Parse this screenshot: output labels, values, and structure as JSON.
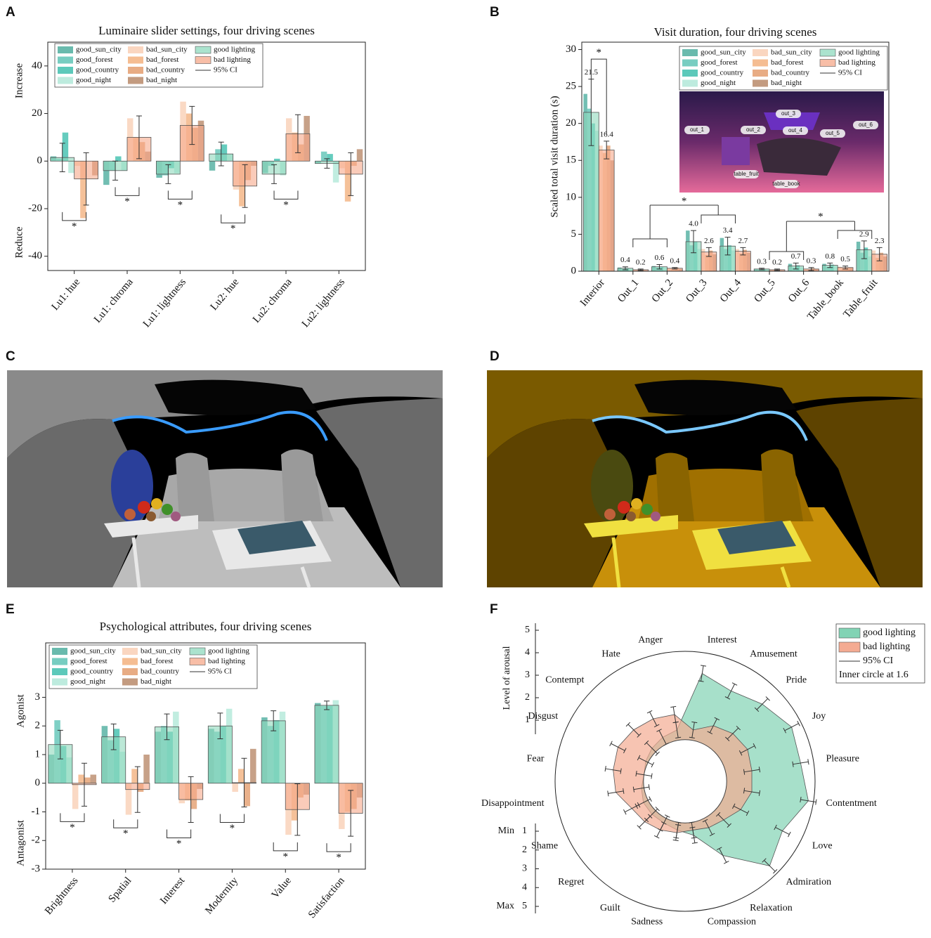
{
  "panel_labels": [
    "A",
    "B",
    "C",
    "D",
    "E",
    "F"
  ],
  "chart_data": [
    {
      "type": "bar",
      "title": "Luminaire slider settings, four driving scenes",
      "y_annotations": [
        "Increase",
        "Reduce"
      ],
      "categories": [
        "Lu1: hue",
        "Lu1: chroma",
        "Lu1: lightness",
        "Lu2: hue",
        "Lu2: chroma",
        "Lu2: lightness"
      ],
      "ylim": [
        -46,
        50
      ],
      "yticks": [
        -40,
        -20,
        0,
        20,
        40
      ],
      "series": [
        {
          "name": "good_sun_city",
          "color": "#4fae9f",
          "values": [
            2,
            -10,
            -7,
            -4,
            -5,
            -1
          ]
        },
        {
          "name": "good_forest",
          "color": "#5fc4b6",
          "values": [
            1,
            -4,
            -6,
            5,
            -2,
            4
          ]
        },
        {
          "name": "good_country",
          "color": "#3fbfae",
          "values": [
            12,
            2,
            -3,
            7,
            1,
            3
          ]
        },
        {
          "name": "good_night",
          "color": "#b2e8d8",
          "values": [
            -5,
            -4,
            -5,
            3,
            -6,
            -9
          ]
        },
        {
          "name": "bad_sun_city",
          "color": "#f9cfb5",
          "values": [
            -2,
            18,
            25,
            -12,
            18,
            -3
          ]
        },
        {
          "name": "bad_forest",
          "color": "#f3b27f",
          "values": [
            -24,
            10,
            20,
            -19,
            12,
            -17
          ]
        },
        {
          "name": "bad_country",
          "color": "#e49d6e",
          "values": [
            0,
            8,
            14,
            -8,
            7,
            -2
          ]
        },
        {
          "name": "bad_night",
          "color": "#b9896a",
          "values": [
            -6,
            4,
            17,
            -2,
            19,
            5
          ]
        },
        {
          "name": "good lighting",
          "color": "#8fd9bd",
          "values": [
            1.5,
            -4,
            -5.5,
            3,
            -5.5,
            -1
          ],
          "errors": [
            6,
            4,
            4,
            5,
            4,
            2
          ]
        },
        {
          "name": "bad lighting",
          "color": "#f6a88a",
          "values": [
            -7.5,
            10,
            15,
            -10.5,
            11.5,
            -5.5
          ],
          "errors": [
            11,
            9,
            8,
            9,
            8,
            9
          ]
        }
      ],
      "ci_label": "95% CI",
      "significance": [
        "*",
        "*",
        "*",
        "*",
        "*",
        null
      ]
    },
    {
      "type": "bar",
      "title": "Visit duration, four driving scenes",
      "ylabel": "Scaled total visit duration (s)",
      "categories": [
        "Interior",
        "Out_1",
        "Out_2",
        "Out_3",
        "Out_4",
        "Out_5",
        "Out_6",
        "Table_book",
        "Table_fruit"
      ],
      "ylim": [
        0,
        31
      ],
      "yticks": [
        0,
        5,
        10,
        15,
        20,
        25,
        30
      ],
      "series": [
        {
          "name": "good_sun_city",
          "color": "#4fae9f",
          "values": [
            24,
            0.5,
            0.7,
            5.5,
            4.5,
            0.3,
            1.0,
            1.0,
            4.0
          ]
        },
        {
          "name": "good_forest",
          "color": "#5fc4b6",
          "values": [
            22,
            0.3,
            0.5,
            3.5,
            3.0,
            0.2,
            0.5,
            0.6,
            2.5
          ]
        },
        {
          "name": "good_country",
          "color": "#3fbfae",
          "values": [
            20,
            0.4,
            0.6,
            4.0,
            3.5,
            0.3,
            0.8,
            0.9,
            3.2
          ]
        },
        {
          "name": "good_night",
          "color": "#b2e8d8",
          "values": [
            19,
            0.3,
            0.5,
            3.0,
            2.8,
            0.3,
            0.5,
            0.7,
            2.0
          ]
        },
        {
          "name": "bad_sun_city",
          "color": "#f9cfb5",
          "values": [
            17,
            0.2,
            0.4,
            3.0,
            3.0,
            0.2,
            0.3,
            0.6,
            2.8
          ]
        },
        {
          "name": "bad_forest",
          "color": "#f3b27f",
          "values": [
            16,
            0.2,
            0.3,
            2.2,
            2.4,
            0.2,
            0.2,
            0.4,
            1.8
          ]
        },
        {
          "name": "bad_country",
          "color": "#e49d6e",
          "values": [
            17,
            0.2,
            0.5,
            2.8,
            2.9,
            0.2,
            0.4,
            0.5,
            2.5
          ]
        },
        {
          "name": "bad_night",
          "color": "#b9896a",
          "values": [
            15,
            0.1,
            0.3,
            2.3,
            2.5,
            0.1,
            0.3,
            0.5,
            2.0
          ]
        },
        {
          "name": "good lighting",
          "color": "#8fd9bd",
          "values": [
            21.5,
            0.4,
            0.6,
            4.0,
            3.4,
            0.3,
            0.7,
            0.8,
            2.9
          ],
          "value_labels": [
            "21.5",
            "0.4",
            "0.6",
            "4.0",
            "3.4",
            "0.3",
            "0.7",
            "0.8",
            "2.9"
          ],
          "errors": [
            4.5,
            0.2,
            0.3,
            1.5,
            1.2,
            0.1,
            0.4,
            0.3,
            1.2
          ]
        },
        {
          "name": "bad lighting",
          "color": "#f6a88a",
          "values": [
            16.4,
            0.2,
            0.4,
            2.6,
            2.7,
            0.2,
            0.3,
            0.5,
            2.3
          ],
          "value_labels": [
            "16.4",
            "0.2",
            "0.4",
            "2.6",
            "2.7",
            "0.2",
            "0.3",
            "0.5",
            "2.3"
          ],
          "errors": [
            1.2,
            0.1,
            0.1,
            0.6,
            0.5,
            0.1,
            0.2,
            0.2,
            0.9
          ]
        }
      ],
      "ci_label": "95% CI",
      "significance": [
        "*",
        "*",
        "*"
      ],
      "inset_labels": [
        "out_3",
        "out_1",
        "out_2",
        "out_4",
        "out_5",
        "out_6",
        "table_fruit",
        "table_book"
      ]
    },
    {
      "type": "bar",
      "title": "Psychological attributes, four driving scenes",
      "y_annotations": [
        "Agonist",
        "Antagonist"
      ],
      "categories": [
        "Brightness",
        "Spatial",
        "Interest",
        "Modernity",
        "Value",
        "Satisfaction"
      ],
      "ylim": [
        -3,
        4.9
      ],
      "yticks": [
        -3,
        -2,
        -1,
        0,
        1,
        2,
        3
      ],
      "series": [
        {
          "name": "good_sun_city",
          "color": "#4fae9f",
          "values": [
            1.0,
            2.0,
            1.8,
            1.9,
            2.3,
            2.8
          ]
        },
        {
          "name": "good_forest",
          "color": "#5fc4b6",
          "values": [
            2.2,
            1.5,
            2.0,
            1.8,
            2.0,
            2.7
          ]
        },
        {
          "name": "good_country",
          "color": "#3fbfae",
          "values": [
            1.3,
            1.9,
            1.8,
            2.0,
            2.2,
            2.7
          ]
        },
        {
          "name": "good_night",
          "color": "#b2e8d8",
          "values": [
            0.9,
            1.1,
            2.5,
            2.6,
            2.5,
            2.9
          ]
        },
        {
          "name": "bad_sun_city",
          "color": "#f9cfb5",
          "values": [
            -0.9,
            -1.1,
            -0.7,
            -0.3,
            -1.8,
            -1.6
          ]
        },
        {
          "name": "bad_forest",
          "color": "#f3b27f",
          "values": [
            0.3,
            0.5,
            -0.6,
            0.5,
            -1.3,
            -1.0
          ]
        },
        {
          "name": "bad_country",
          "color": "#e49d6e",
          "values": [
            0.2,
            -0.3,
            -0.9,
            -0.8,
            -0.5,
            -0.9
          ]
        },
        {
          "name": "bad_night",
          "color": "#b9896a",
          "values": [
            0.3,
            1.0,
            -0.2,
            1.2,
            -0.4,
            -0.5
          ]
        },
        {
          "name": "good lighting",
          "color": "#8fd9bd",
          "values": [
            1.35,
            1.62,
            1.97,
            2.0,
            2.18,
            2.72
          ],
          "errors": [
            0.5,
            0.45,
            0.45,
            0.45,
            0.35,
            0.15
          ]
        },
        {
          "name": "bad lighting",
          "color": "#f6a88a",
          "values": [
            -0.05,
            -0.22,
            -0.57,
            0.02,
            -0.92,
            -1.05
          ],
          "errors": [
            0.75,
            0.8,
            0.8,
            0.85,
            0.9,
            0.8
          ]
        }
      ],
      "ci_label": "95% CI",
      "significance": [
        "*",
        "*",
        "*",
        "*",
        "*",
        "*"
      ]
    },
    {
      "type": "radar",
      "categories": [
        "Interest",
        "Amusement",
        "Pride",
        "Joy",
        "Pleasure",
        "Contentment",
        "Love",
        "Admiration",
        "Relaxation",
        "Compassion",
        "Sadness",
        "Guilt",
        "Regret",
        "Shame",
        "Disappointment",
        "Fear",
        "Disgust",
        "Contempt",
        "Hate",
        "Anger"
      ],
      "rlim": [
        0,
        5
      ],
      "rticks": [
        1,
        2,
        3,
        4,
        5
      ],
      "raxis_label": "Level of arousal",
      "min_label": "Min",
      "max_label": "Max",
      "inner_circle": 1.6,
      "legend_note": "Inner circle at 1.6",
      "ci_label": "95% CI",
      "series": [
        {
          "name": "good lighting",
          "color": "#82d3b4",
          "values": [
            4.2,
            3.9,
            4.2,
            4.6,
            4.5,
            4.8,
            4.2,
            4.6,
            3.2,
            2.1,
            1.9,
            1.8,
            1.8,
            1.8,
            1.7,
            1.6,
            1.7,
            1.8,
            1.9,
            2.0
          ],
          "errors": [
            0.3,
            0.3,
            0.3,
            0.3,
            0.3,
            0.3,
            0.3,
            0.3,
            0.3,
            0.3,
            0.3,
            0.3,
            0.3,
            0.3,
            0.3,
            0.3,
            0.3,
            0.3,
            0.3,
            0.3
          ]
        },
        {
          "name": "bad lighting",
          "color": "#f4ab92",
          "values": [
            2.0,
            2.4,
            2.6,
            2.7,
            2.6,
            2.6,
            2.4,
            2.1,
            2.0,
            1.9,
            2.0,
            2.1,
            2.2,
            2.3,
            2.7,
            2.8,
            2.9,
            2.8,
            2.7,
            2.6
          ],
          "errors": [
            0.3,
            0.3,
            0.3,
            0.3,
            0.3,
            0.3,
            0.3,
            0.3,
            0.3,
            0.3,
            0.3,
            0.3,
            0.3,
            0.3,
            0.3,
            0.3,
            0.3,
            0.3,
            0.3,
            0.3
          ]
        }
      ]
    }
  ]
}
